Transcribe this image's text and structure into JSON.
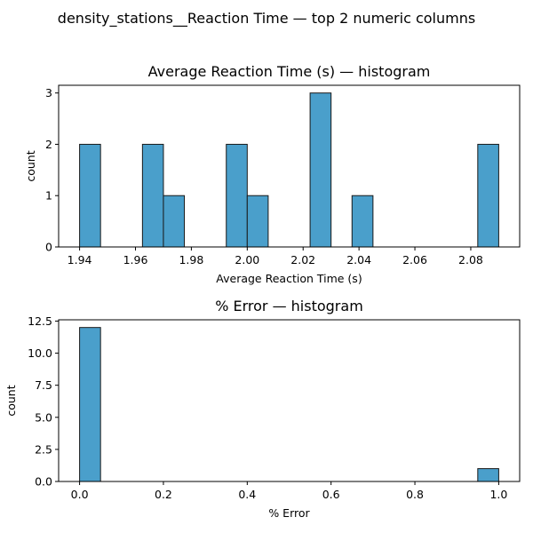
{
  "figure": {
    "suptitle": "density_stations__Reaction Time — top 2 numeric columns"
  },
  "chart_data": [
    {
      "type": "bar",
      "title": "Average Reaction Time (s) — histogram",
      "xlabel": "Average Reaction Time (s)",
      "ylabel": "count",
      "bar_color": "#4a9fcb",
      "edge_color": "#1a1a1a",
      "xlim": [
        1.9325,
        2.0975
      ],
      "ylim": [
        0,
        3.15
      ],
      "xticks": [
        1.94,
        1.96,
        1.98,
        2.0,
        2.02,
        2.04,
        2.06,
        2.08
      ],
      "xtick_labels": [
        "1.94",
        "1.96",
        "1.98",
        "2.00",
        "2.02",
        "2.04",
        "2.06",
        "2.08"
      ],
      "yticks": [
        0,
        1,
        2,
        3
      ],
      "ytick_labels": [
        "0",
        "1",
        "2",
        "3"
      ],
      "bin_start": 1.94,
      "bin_width": 0.0075,
      "counts": [
        2,
        0,
        0,
        2,
        1,
        0,
        0,
        2,
        1,
        0,
        0,
        3,
        0,
        1,
        0,
        0,
        0,
        0,
        0,
        2
      ],
      "grid": false
    },
    {
      "type": "bar",
      "title": "% Error — histogram",
      "xlabel": "% Error",
      "ylabel": "count",
      "bar_color": "#4a9fcb",
      "edge_color": "#1a1a1a",
      "xlim": [
        -0.05,
        1.05
      ],
      "ylim": [
        0,
        12.6
      ],
      "xticks": [
        0.0,
        0.2,
        0.4,
        0.6,
        0.8,
        1.0
      ],
      "xtick_labels": [
        "0.0",
        "0.2",
        "0.4",
        "0.6",
        "0.8",
        "1.0"
      ],
      "yticks": [
        0,
        2.5,
        5.0,
        7.5,
        10.0,
        12.5
      ],
      "ytick_labels": [
        "0.0",
        "2.5",
        "5.0",
        "7.5",
        "10.0",
        "12.5"
      ],
      "bin_start": 0.0,
      "bin_width": 0.05,
      "counts": [
        12,
        0,
        0,
        0,
        0,
        0,
        0,
        0,
        0,
        0,
        0,
        0,
        0,
        0,
        0,
        0,
        0,
        0,
        0,
        1
      ],
      "grid": false
    }
  ]
}
